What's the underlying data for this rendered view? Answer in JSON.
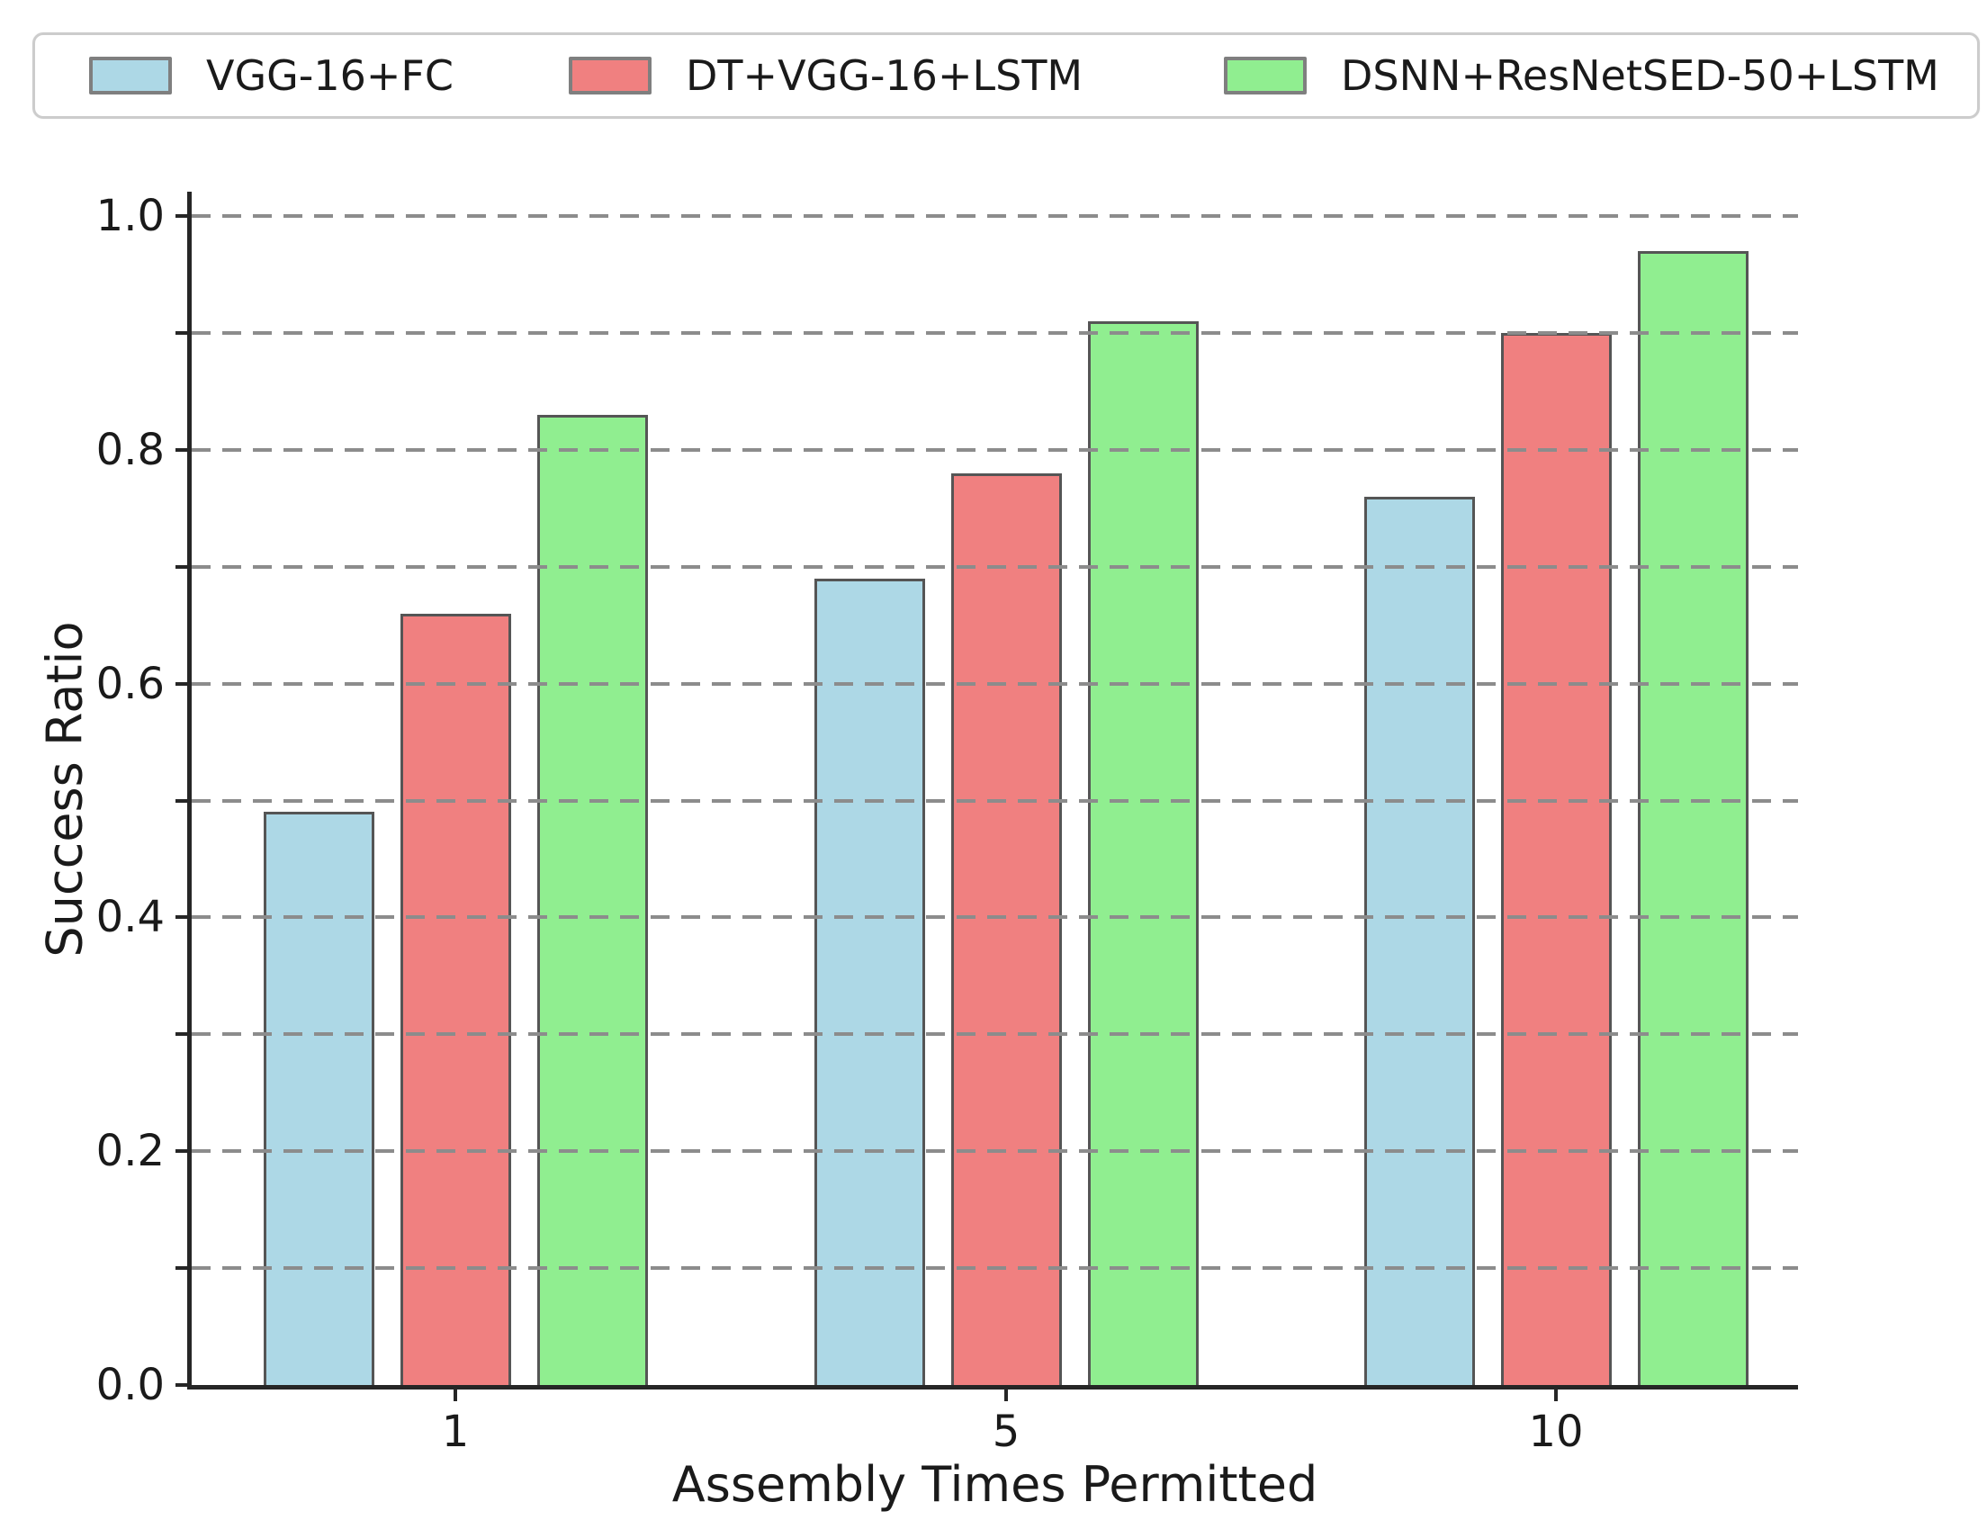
{
  "legend": {
    "entries": [
      {
        "label": "VGG-16+FC",
        "color": "#ADD8E6"
      },
      {
        "label": "DT+VGG-16+LSTM",
        "color": "#F08080"
      },
      {
        "label": "DSNN+ResNetSED-50+LSTM",
        "color": "#90EE90"
      }
    ]
  },
  "chart_data": {
    "type": "bar",
    "title": "",
    "xlabel": "Assembly Times Permitted",
    "ylabel": "Success Ratio",
    "categories": [
      "1",
      "5",
      "10"
    ],
    "series": [
      {
        "name": "VGG-16+FC",
        "color": "#ADD8E6",
        "values": [
          0.49,
          0.69,
          0.76
        ]
      },
      {
        "name": "DT+VGG-16+LSTM",
        "color": "#F08080",
        "values": [
          0.66,
          0.78,
          0.9
        ]
      },
      {
        "name": "DSNN+ResNetSED-50+LSTM",
        "color": "#90EE90",
        "values": [
          0.83,
          0.91,
          0.97
        ]
      }
    ],
    "ylim": [
      0.0,
      1.02
    ],
    "yticks_labeled": [
      "0.0",
      "0.2",
      "0.4",
      "0.6",
      "0.8",
      "1.0"
    ],
    "grid": {
      "on": true,
      "interval": 0.1,
      "style": "dashed",
      "color": "#8c8c8c",
      "drawn_above_bars": true
    },
    "legend_position": "top",
    "bar_edge_color": "#555555",
    "axis_color": "#262626"
  }
}
